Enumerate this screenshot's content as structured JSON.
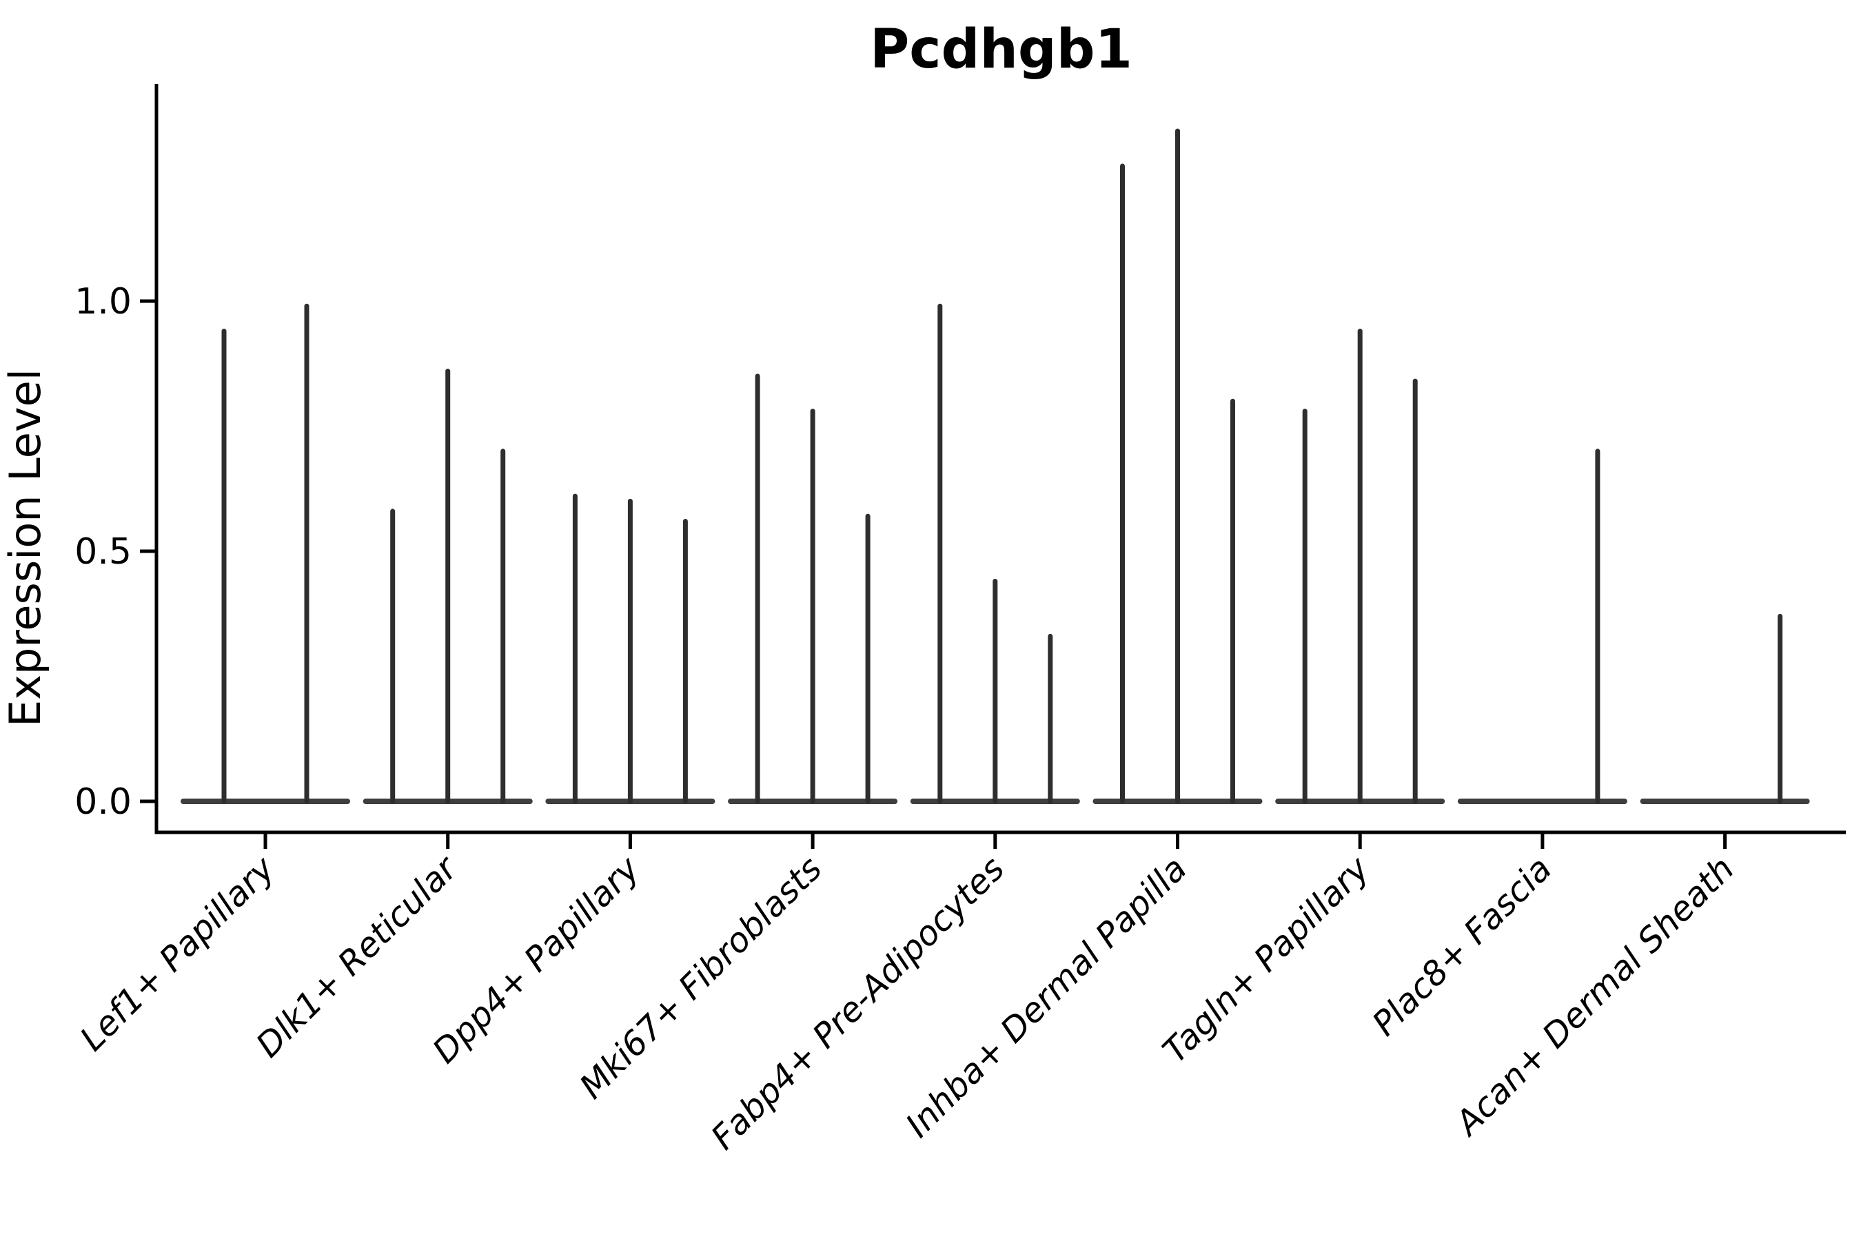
{
  "title": "Pcdhgb1",
  "y_axis": {
    "label": "Expression Level",
    "tick_labels": [
      "0.0",
      "0.5",
      "1.0"
    ]
  },
  "x_axis": {
    "label": "",
    "tick_labels": [
      "Lef1+ Papillary",
      "Dlk1+ Reticular",
      "Dpp4+ Papillary",
      "Mki67+ Fibroblasts",
      "Fabp4+ Pre-Adipocytes",
      "Inhba+ Dermal Papilla",
      "Tagln+ Papillary",
      "Plac8+ Fascia",
      "Acan+ Dermal Sheath"
    ]
  },
  "colors": {
    "violin": "#2e2e2e",
    "axis": "#000000",
    "text": "#000000",
    "background": "#ffffff"
  },
  "chart_data": {
    "type": "violin",
    "title": "Pcdhgb1",
    "xlabel": "",
    "ylabel": "Expression Level",
    "ylim": [
      0,
      1.43
    ],
    "yticks": [
      0.0,
      0.5,
      1.0
    ],
    "ytick_labels": [
      "0.0",
      "0.5",
      "1.0"
    ],
    "grid": false,
    "legend_position": "none",
    "categories": [
      "Lef1+ Papillary",
      "Dlk1+ Reticular",
      "Dpp4+ Papillary",
      "Mki67+ Fibroblasts",
      "Fabp4+ Pre-Adipocytes",
      "Inhba+ Dermal Papilla",
      "Tagln+ Papillary",
      "Plac8+ Fascia",
      "Acan+ Dermal Sheath"
    ],
    "groups": [
      {
        "category": "Lef1+ Papillary",
        "violin_peaks": [
          0.94,
          0.99
        ]
      },
      {
        "category": "Dlk1+ Reticular",
        "violin_peaks": [
          0.58,
          0.86,
          0.7
        ]
      },
      {
        "category": "Dpp4+ Papillary",
        "violin_peaks": [
          0.61,
          0.6,
          0.56
        ]
      },
      {
        "category": "Mki67+ Fibroblasts",
        "violin_peaks": [
          0.85,
          0.78,
          0.57
        ]
      },
      {
        "category": "Fabp4+ Pre-Adipocytes",
        "violin_peaks": [
          0.99,
          0.44,
          0.33
        ]
      },
      {
        "category": "Inhba+ Dermal Papilla",
        "violin_peaks": [
          1.27,
          1.34,
          0.8
        ]
      },
      {
        "category": "Tagln+ Papillary",
        "violin_peaks": [
          0.78,
          0.94,
          0.84
        ]
      },
      {
        "category": "Plac8+ Fascia",
        "violin_peaks": [
          0,
          0,
          0.7
        ]
      },
      {
        "category": "Acan+ Dermal Sheath",
        "violin_peaks": [
          0,
          0,
          0.37
        ]
      }
    ]
  }
}
